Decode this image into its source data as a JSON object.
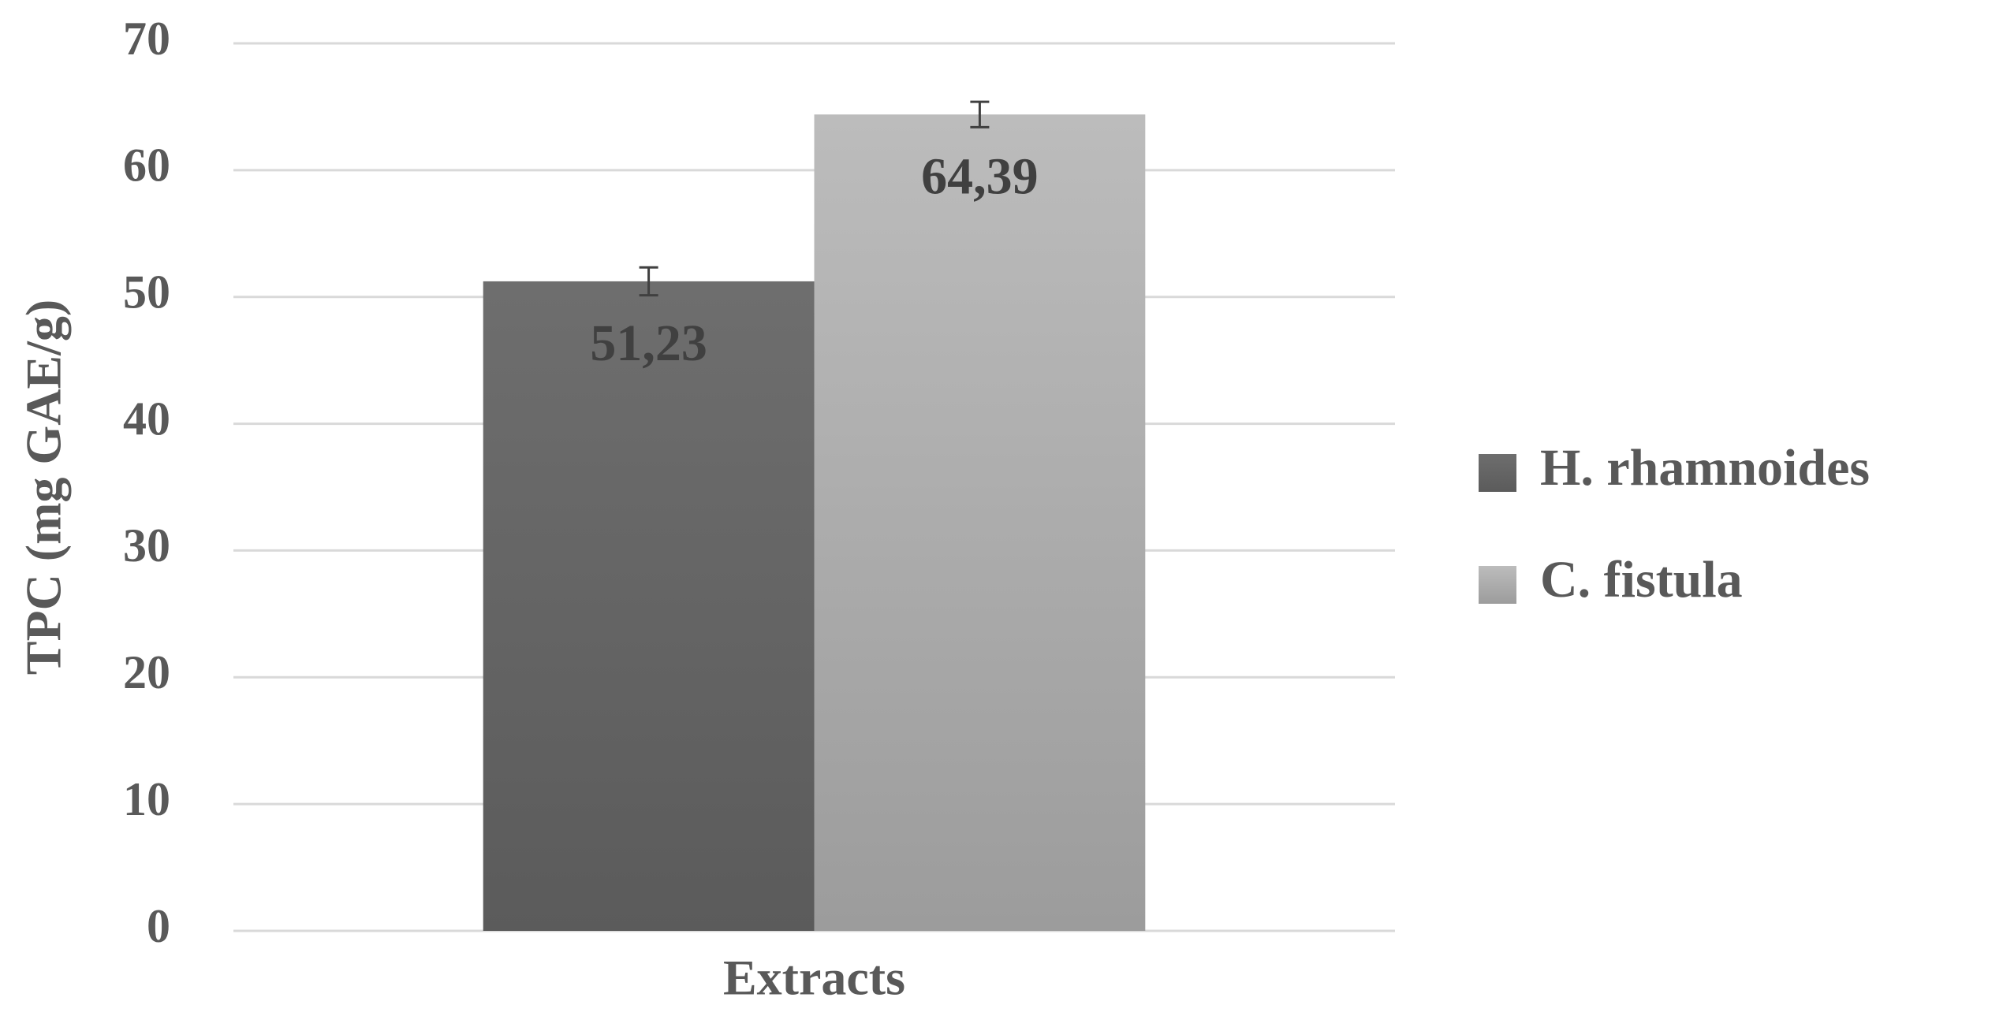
{
  "chart_data": {
    "type": "bar",
    "y_label": "TPC (mg GAE/g)",
    "x_label": "Extracts",
    "categories": [
      "Extracts"
    ],
    "series": [
      {
        "name": "H. rhamnoides",
        "color": "#6e6e6e",
        "values": [
          51.23
        ],
        "value_labels": [
          "51,23"
        ],
        "errors": [
          1.1
        ]
      },
      {
        "name": "C. fistula",
        "color": "#bcbcbc",
        "values": [
          64.39
        ],
        "value_labels": [
          "64,39"
        ],
        "errors": [
          1.0
        ]
      }
    ],
    "ylim": [
      0,
      70
    ],
    "yticks": [
      0,
      10,
      20,
      30,
      40,
      50,
      60,
      70
    ],
    "grid": true,
    "legend": "right"
  }
}
